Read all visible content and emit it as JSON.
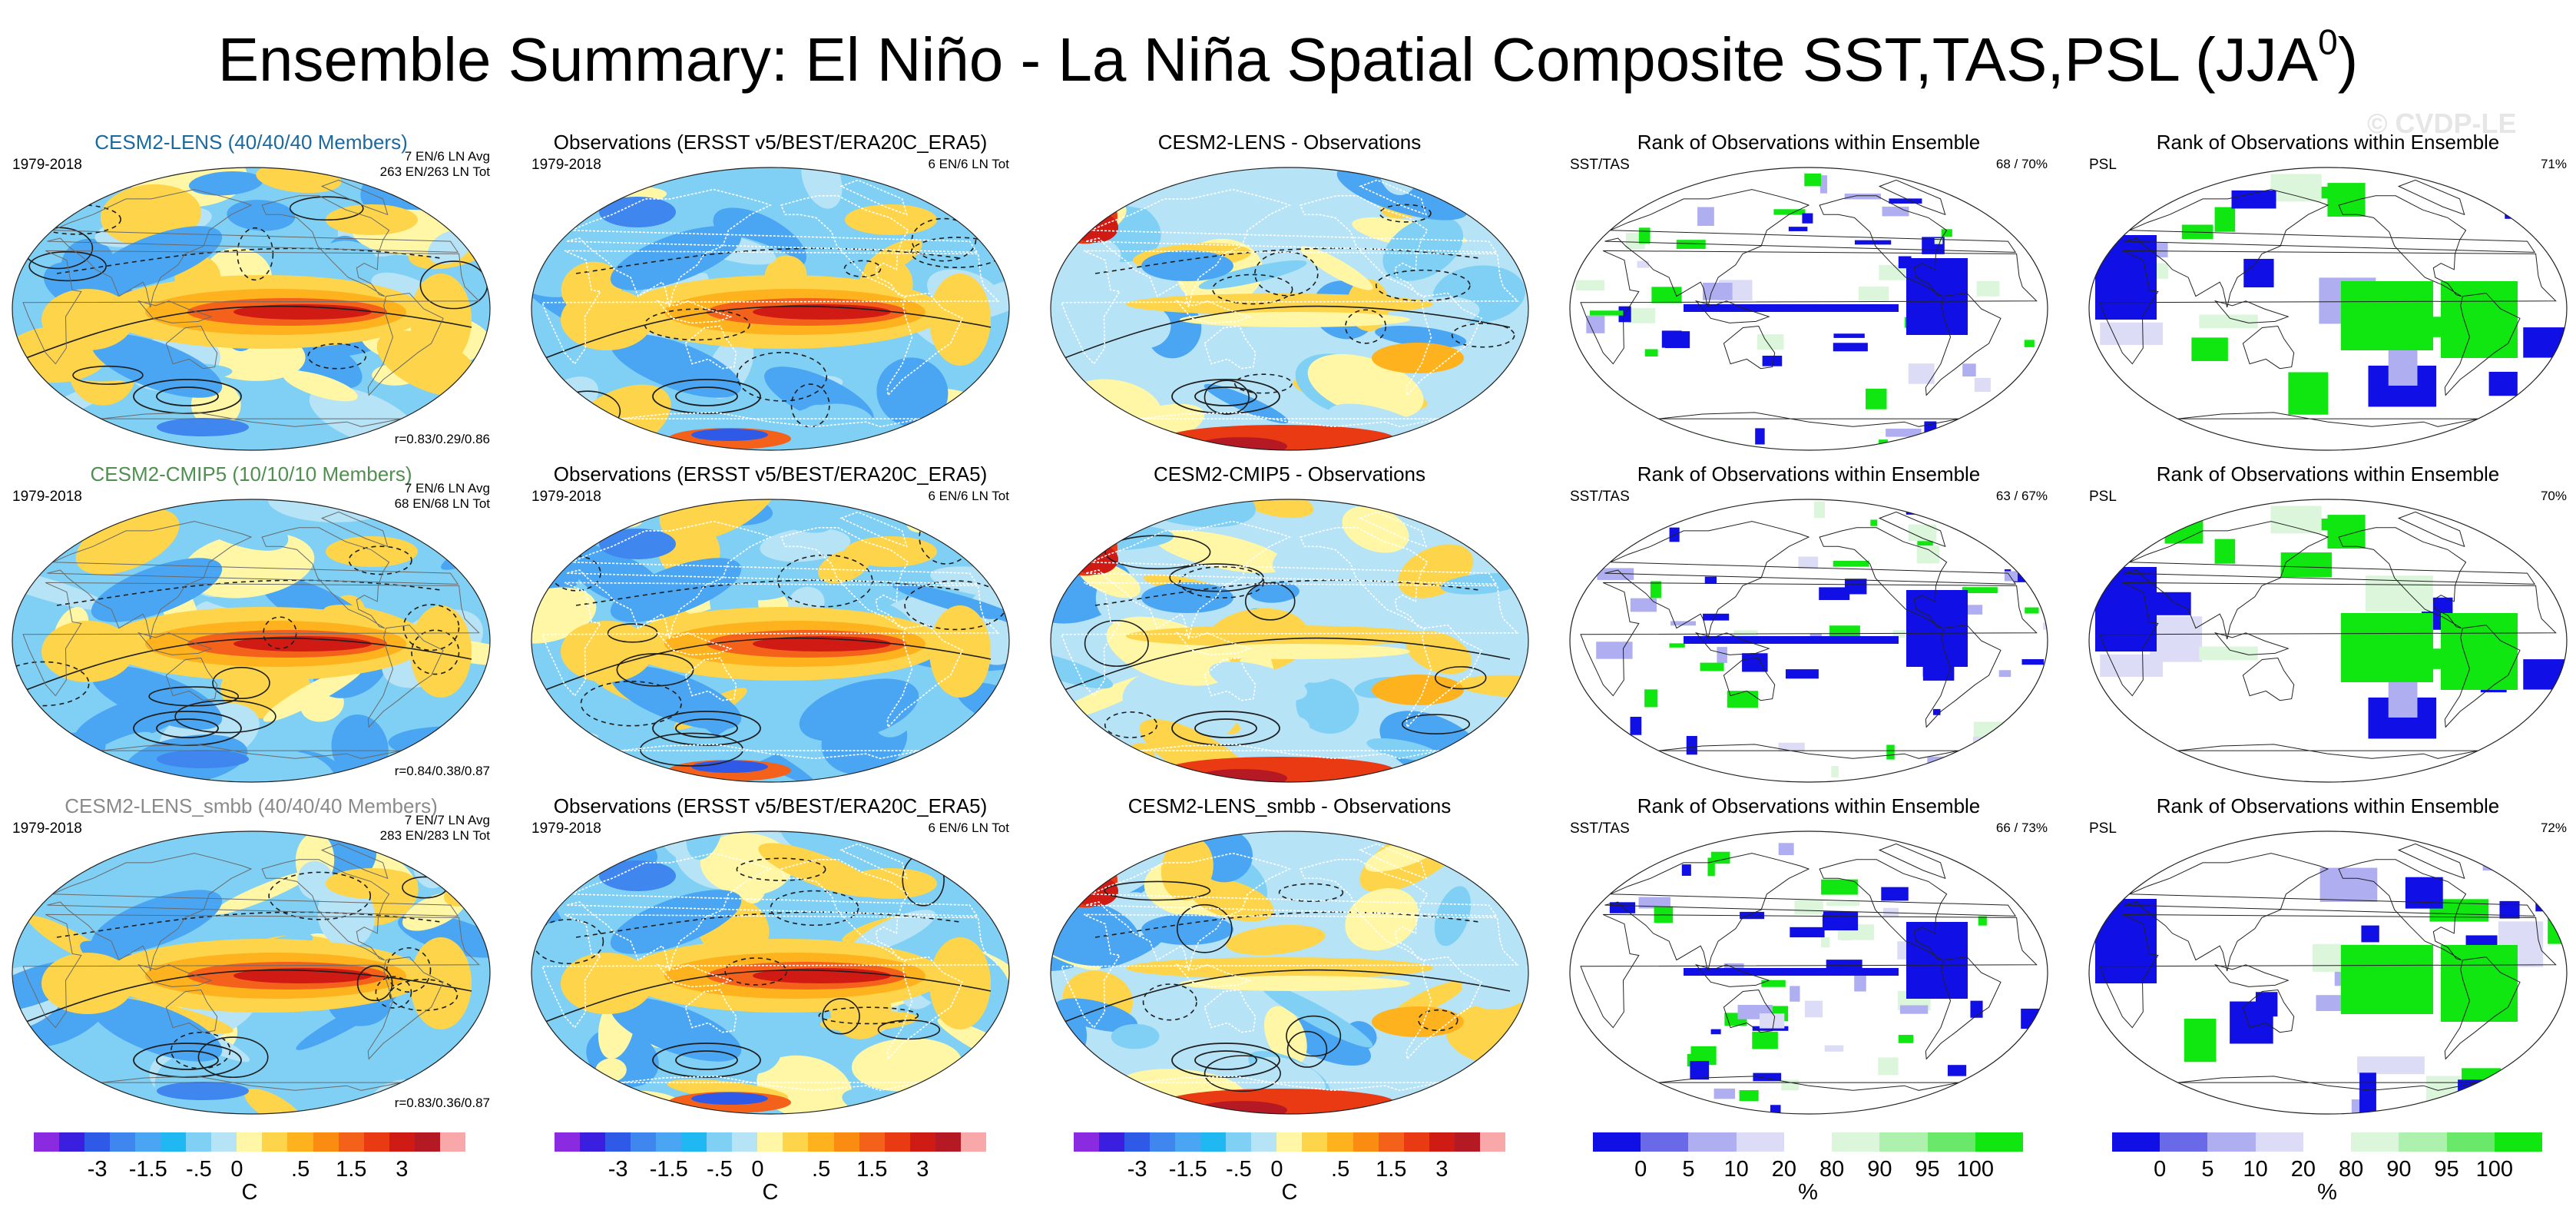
{
  "figure": {
    "title": "Ensemble Summary: El Niño - La Niña Spatial Composite SST,TAS,PSL (JJA",
    "title_superscript": "0",
    "title_close": ")",
    "watermark": "© CVDP-LE"
  },
  "rows": [
    {
      "model": {
        "title": "CESM2-LENS (40/40/40 Members)",
        "title_color": "#1a6aa0",
        "period": "1979-2018",
        "info_line1": "7 EN/6 LN Avg",
        "info_line2": "263 EN/263 LN Tot",
        "correlation": "r=0.83/0.29/0.86"
      },
      "obs": {
        "title": "Observations (ERSST v5/BEST/ERA20C_ERA5)",
        "period": "1979-2018",
        "info": "6 EN/6 LN Tot"
      },
      "diff": {
        "title": "CESM2-LENS - Observations"
      },
      "rank_sst": {
        "title": "Rank of Observations within Ensemble",
        "var": "SST/TAS",
        "pct": "68 /  70%"
      },
      "rank_psl": {
        "title": "Rank of Observations within Ensemble",
        "var": "PSL",
        "pct": "71%"
      }
    },
    {
      "model": {
        "title": "CESM2-CMIP5 (10/10/10 Members)",
        "title_color": "#4f8f4f",
        "period": "1979-2018",
        "info_line1": "7 EN/6 LN Avg",
        "info_line2": "68 EN/68 LN Tot",
        "correlation": "r=0.84/0.38/0.87"
      },
      "obs": {
        "title": "Observations (ERSST v5/BEST/ERA20C_ERA5)",
        "period": "1979-2018",
        "info": "6 EN/6 LN Tot"
      },
      "diff": {
        "title": "CESM2-CMIP5 - Observations"
      },
      "rank_sst": {
        "title": "Rank of Observations within Ensemble",
        "var": "SST/TAS",
        "pct": "63 /  67%"
      },
      "rank_psl": {
        "title": "Rank of Observations within Ensemble",
        "var": "PSL",
        "pct": "70%"
      }
    },
    {
      "model": {
        "title": "CESM2-LENS_smbb (40/40/40 Members)",
        "title_color": "#8a8a8a",
        "period": "1979-2018",
        "info_line1": "7 EN/7 LN Avg",
        "info_line2": "283 EN/283 LN Tot",
        "correlation": "r=0.83/0.36/0.87"
      },
      "obs": {
        "title": "Observations (ERSST v5/BEST/ERA20C_ERA5)",
        "period": "1979-2018",
        "info": "6 EN/6 LN Tot"
      },
      "diff": {
        "title": "CESM2-LENS_smbb - Observations"
      },
      "rank_sst": {
        "title": "Rank of Observations within Ensemble",
        "var": "SST/TAS",
        "pct": "66 /  73%"
      },
      "rank_psl": {
        "title": "Rank of Observations within Ensemble",
        "var": "PSL",
        "pct": "72%"
      }
    }
  ],
  "colorbars": {
    "temp": {
      "unit": "C",
      "tick_labels": [
        "-3",
        "-1.5",
        "-.5",
        "0",
        ".5",
        "1.5",
        "3"
      ],
      "colors": [
        "#8a2be2",
        "#3a1fe0",
        "#2f5ae8",
        "#3f86ee",
        "#4aa6f2",
        "#20b8f2",
        "#7fd0f4",
        "#b6e3f6",
        "#fff7a6",
        "#fed54a",
        "#feb21e",
        "#fb8c12",
        "#f4611a",
        "#ea3a14",
        "#d01a14",
        "#b51a24",
        "#f8a8a8"
      ]
    },
    "rank": {
      "unit": "%",
      "tick_labels": [
        "0",
        "5",
        "10",
        "20",
        "80",
        "90",
        "95",
        "100"
      ],
      "colors": [
        "#1010e6",
        "#6a6ae8",
        "#aeaef0",
        "#dcdcf6",
        "#ffffff",
        "#dcf6dc",
        "#aef0ae",
        "#6ae86a",
        "#10e610"
      ]
    }
  },
  "map_colors": {
    "coast": "#ffffff",
    "contour": "#1e1e1e",
    "rank_coast": "#222222"
  }
}
